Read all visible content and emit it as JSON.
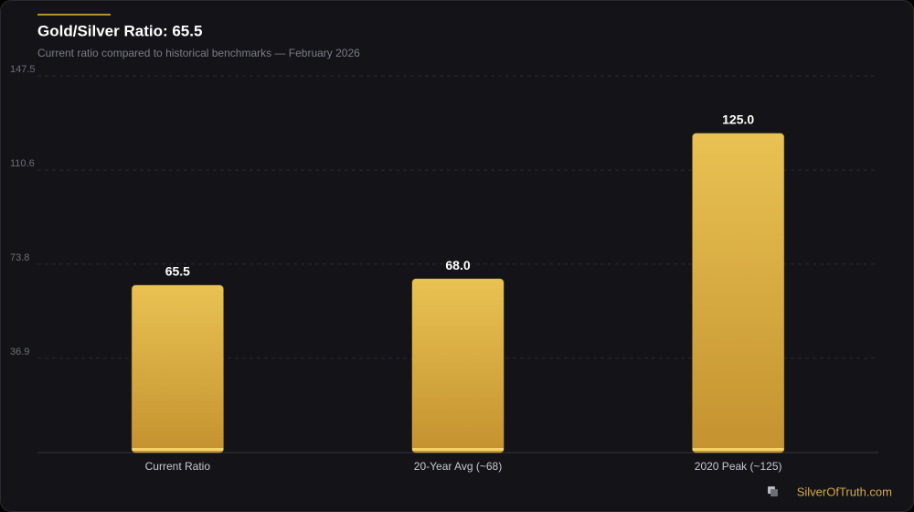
{
  "chart_data": {
    "type": "bar",
    "title": "Gold/Silver Ratio: 65.5",
    "subtitle": "Current ratio compared to historical benchmarks — February 2026",
    "categories": [
      "Current Ratio",
      "20-Year Avg (~68)",
      "2020 Peak (~125)"
    ],
    "values": [
      65.5,
      68,
      125
    ],
    "value_labels": [
      "65.5",
      "68.0",
      "125.0"
    ],
    "color": "#e2b84a",
    "ylim": [
      0,
      147.5
    ],
    "yticks": [
      36.9,
      73.8,
      110.6,
      147.5
    ],
    "grid": true
  },
  "footer": "SilverOfTruth.com"
}
